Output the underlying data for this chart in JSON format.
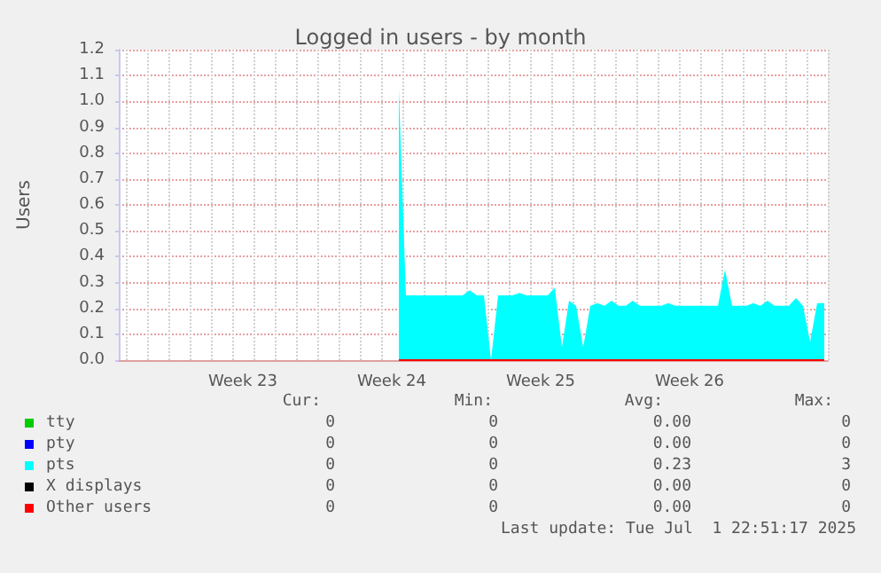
{
  "chart_data": {
    "type": "area",
    "title": "Logged in users - by month",
    "ylabel": "Users",
    "categories": [
      null,
      null,
      null,
      null,
      null,
      null,
      null,
      null,
      null,
      null,
      null,
      null,
      null,
      null,
      null,
      null,
      null,
      "Week 23",
      null,
      null,
      null,
      null,
      null,
      null,
      null,
      null,
      null,
      null,
      null,
      null,
      null,
      null,
      null,
      null,
      null,
      null,
      null,
      null,
      "Week 24",
      null,
      null,
      null,
      null,
      null,
      null,
      null,
      null,
      null,
      null,
      null,
      null,
      null,
      null,
      null,
      null,
      null,
      null,
      null,
      null,
      "Week 25",
      null,
      null,
      null,
      null,
      null,
      null,
      null,
      null,
      null,
      null,
      null,
      null,
      null,
      null,
      null,
      null,
      null,
      null,
      null,
      null,
      "Week 26",
      null,
      null,
      null,
      null,
      null,
      null,
      null,
      null,
      null,
      null,
      null,
      null,
      null,
      null,
      null,
      null,
      null,
      null,
      null
    ],
    "ylim": [
      0,
      1.2
    ],
    "yticks": [
      {
        "value": 0,
        "label": "0.0"
      },
      0.1,
      0.2,
      0.3,
      0.4,
      0.5,
      0.6,
      0.7,
      0.8,
      0.9,
      {
        "value": 1,
        "label": "1.0"
      },
      1.1,
      1.2
    ],
    "grid": true,
    "legend": "bottom",
    "series": [
      {
        "name": "tty",
        "color": "#00cc00",
        "type": "line",
        "values": [
          null,
          null,
          null,
          null,
          null,
          null,
          null,
          null,
          null,
          null,
          null,
          null,
          null,
          null,
          null,
          null,
          null,
          null,
          null,
          null,
          null,
          null,
          null,
          null,
          null,
          null,
          null,
          null,
          null,
          null,
          null,
          null,
          null,
          null,
          null,
          null,
          null,
          null,
          null,
          null,
          null,
          null,
          null,
          null,
          null,
          null,
          null,
          null,
          null,
          null,
          null,
          null,
          null,
          null,
          null,
          null,
          null,
          null,
          null,
          null,
          null,
          null,
          null,
          null,
          null,
          null,
          null,
          null,
          null,
          null,
          null,
          null,
          null,
          null,
          null,
          null,
          null,
          null,
          null,
          null,
          null,
          null,
          null,
          null,
          null,
          null,
          null,
          null,
          null,
          null,
          null,
          null,
          null,
          null,
          null,
          null,
          null,
          null,
          null,
          null
        ]
      },
      {
        "name": "pty",
        "color": "#0000ff",
        "type": "line",
        "values": [
          null,
          null,
          null,
          null,
          null,
          null,
          null,
          null,
          null,
          null,
          null,
          null,
          null,
          null,
          null,
          null,
          null,
          null,
          null,
          null,
          null,
          null,
          null,
          null,
          null,
          null,
          null,
          null,
          null,
          null,
          null,
          null,
          null,
          null,
          null,
          null,
          null,
          null,
          null,
          null,
          null,
          null,
          null,
          null,
          null,
          null,
          null,
          null,
          null,
          null,
          null,
          null,
          null,
          null,
          null,
          null,
          null,
          null,
          null,
          null,
          null,
          null,
          null,
          null,
          null,
          null,
          null,
          null,
          null,
          null,
          null,
          null,
          null,
          null,
          null,
          null,
          null,
          null,
          null,
          null,
          null,
          null,
          null,
          null,
          null,
          null,
          null,
          null,
          null,
          null,
          null,
          null,
          null,
          null,
          null,
          null,
          null,
          null,
          null,
          null
        ]
      },
      {
        "name": "pts",
        "color": "#00ffff",
        "values": [
          null,
          null,
          null,
          null,
          null,
          null,
          null,
          null,
          null,
          null,
          null,
          null,
          null,
          null,
          null,
          null,
          null,
          null,
          null,
          null,
          null,
          null,
          null,
          null,
          null,
          null,
          null,
          null,
          null,
          null,
          null,
          null,
          null,
          null,
          null,
          null,
          null,
          null,
          null,
          1.05,
          0.25,
          0.25,
          0.25,
          0.25,
          0.25,
          0.25,
          0.25,
          0.25,
          0.25,
          0.27,
          0.25,
          0.25,
          0,
          0.25,
          0.25,
          0.25,
          0.26,
          0.25,
          0.25,
          0.25,
          0.25,
          0.28,
          0.05,
          0.23,
          0.21,
          0.05,
          0.21,
          0.22,
          0.21,
          0.23,
          0.21,
          0.21,
          0.23,
          0.21,
          0.21,
          0.21,
          0.21,
          0.22,
          0.21,
          0.21,
          0.21,
          0.21,
          0.21,
          0.21,
          0.21,
          0.35,
          0.21,
          0.21,
          0.21,
          0.22,
          0.21,
          0.23,
          0.21,
          0.21,
          0.21,
          0.24,
          0.21,
          0.07,
          0.22,
          0.22
        ]
      },
      {
        "name": "X displays",
        "color": "#000000",
        "type": "line",
        "values": [
          null,
          null,
          null,
          null,
          null,
          null,
          null,
          null,
          null,
          null,
          null,
          null,
          null,
          null,
          null,
          null,
          null,
          null,
          null,
          null,
          null,
          null,
          null,
          null,
          null,
          null,
          null,
          null,
          null,
          null,
          null,
          null,
          null,
          null,
          null,
          null,
          null,
          null,
          null,
          null,
          null,
          null,
          null,
          null,
          null,
          null,
          null,
          null,
          null,
          null,
          null,
          null,
          null,
          null,
          null,
          null,
          null,
          null,
          null,
          null,
          null,
          null,
          null,
          null,
          null,
          null,
          null,
          null,
          null,
          null,
          null,
          null,
          null,
          null,
          null,
          null,
          null,
          null,
          null,
          null,
          null,
          null,
          null,
          null,
          null,
          null,
          null,
          null,
          null,
          null,
          null,
          null,
          null,
          null,
          null,
          null,
          null,
          null,
          null,
          null
        ]
      },
      {
        "name": "Other users",
        "color": "#ff0000",
        "type": "line",
        "values": [
          null,
          null,
          null,
          null,
          null,
          null,
          null,
          null,
          null,
          null,
          null,
          null,
          null,
          null,
          null,
          null,
          null,
          null,
          null,
          null,
          null,
          null,
          null,
          null,
          null,
          null,
          null,
          null,
          null,
          null,
          null,
          null,
          null,
          null,
          null,
          null,
          null,
          null,
          null,
          0,
          0,
          0,
          0,
          0,
          0,
          0,
          0,
          0,
          0,
          0,
          0,
          0,
          0,
          0,
          0,
          0,
          0,
          0,
          0,
          0,
          0,
          0,
          0,
          0,
          0,
          0,
          0,
          0,
          0,
          0,
          0,
          0,
          0,
          0,
          0,
          0,
          0,
          0,
          0,
          0,
          0,
          0,
          0,
          0,
          0,
          0,
          0,
          0,
          0,
          0,
          0,
          0,
          0,
          0,
          0,
          0,
          0,
          0,
          0,
          0
        ]
      }
    ],
    "annotations": [
      "Cur:",
      "Min:",
      "Avg:",
      "Max:",
      "0",
      "0",
      "0.00",
      "0",
      "0",
      "0",
      "0.00",
      "0",
      "0",
      "0",
      "0.23",
      "3",
      "0",
      "0",
      "0.00",
      "0",
      "0",
      "0",
      "0.00",
      "0",
      "Last update: Tue Jul  1 22:51:17 2025"
    ]
  }
}
